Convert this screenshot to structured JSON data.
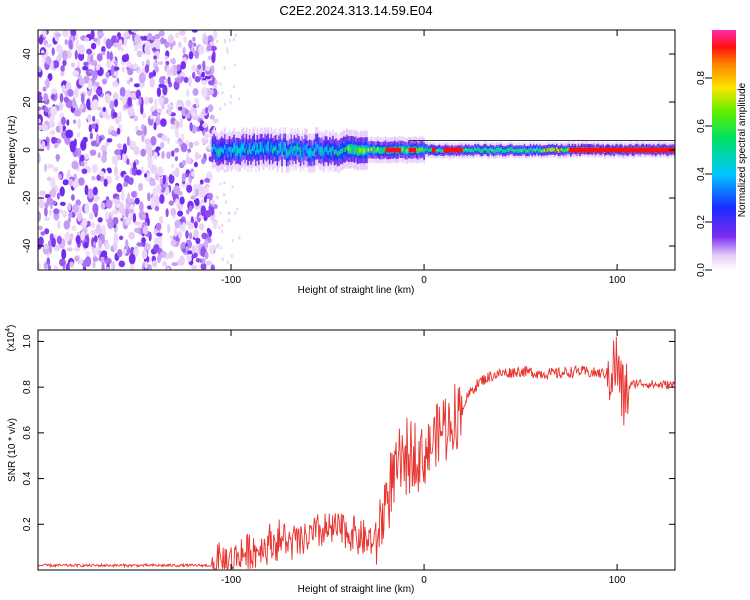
{
  "title": "C2E2.2024.313.14.59.E04",
  "chart_data": [
    {
      "type": "heatmap",
      "xlabel": "Height of straight line (km)",
      "ylabel": "Frequency (Hz)",
      "xlim": [
        -200,
        130
      ],
      "ylim": [
        -50,
        50
      ],
      "xticks": [
        -100,
        0,
        100
      ],
      "yticks": [
        -40,
        -20,
        0,
        20,
        40
      ],
      "colorbar": {
        "label": "Normalized spectral amplitude",
        "range": [
          0,
          1
        ],
        "ticks": [
          "0.0",
          "0.2",
          "0.4",
          "0.6",
          "0.8"
        ],
        "colormap": "rainbow (white-violet-blue-cyan-green-yellow-red-magenta)"
      },
      "features": {
        "noise_region_x": [
          -200,
          -108
        ],
        "signal_band_center_hz": 0,
        "signal_start_x": -110,
        "signal_end_x": 130,
        "horizontal_reference_line_hz": 4
      }
    },
    {
      "type": "line",
      "xlabel": "Height of straight line (km)",
      "ylabel": "SNR (10 * v/v)",
      "y_multiplier": "(x10",
      "y_multiplier_exp": "4",
      "y_multiplier_close": ")",
      "xlim": [
        -200,
        130
      ],
      "ylim": [
        0,
        1.05
      ],
      "xticks": [
        -100,
        0,
        100
      ],
      "yticks": [
        0.2,
        0.4,
        0.6,
        0.8,
        1.0
      ],
      "ytick_labels": [
        "0.2",
        "0.4",
        "0.6",
        "0.8",
        "1.0"
      ],
      "color": "#e8332e",
      "series": [
        {
          "x": [
            -200,
            -180,
            -160,
            -140,
            -120,
            -110,
            -100,
            -95,
            -90,
            -85,
            -80,
            -75,
            -70,
            -65,
            -60,
            -55,
            -50,
            -45,
            -40,
            -35,
            -30,
            -25,
            -22,
            -20,
            -15,
            -10,
            -5,
            0,
            5,
            10,
            15,
            20,
            25,
            30,
            35,
            40,
            50,
            60,
            70,
            80,
            90,
            95,
            100,
            103,
            106,
            110,
            120,
            130
          ],
          "y": [
            0.02,
            0.02,
            0.02,
            0.02,
            0.02,
            0.02,
            0.04,
            0.07,
            0.08,
            0.09,
            0.12,
            0.13,
            0.12,
            0.12,
            0.14,
            0.16,
            0.17,
            0.18,
            0.17,
            0.15,
            0.13,
            0.12,
            0.22,
            0.3,
            0.42,
            0.48,
            0.52,
            0.5,
            0.57,
            0.63,
            0.65,
            0.72,
            0.79,
            0.83,
            0.85,
            0.86,
            0.87,
            0.86,
            0.86,
            0.87,
            0.86,
            0.86,
            0.9,
            0.75,
            0.8,
            0.82,
            0.81,
            0.81
          ]
        }
      ]
    }
  ]
}
